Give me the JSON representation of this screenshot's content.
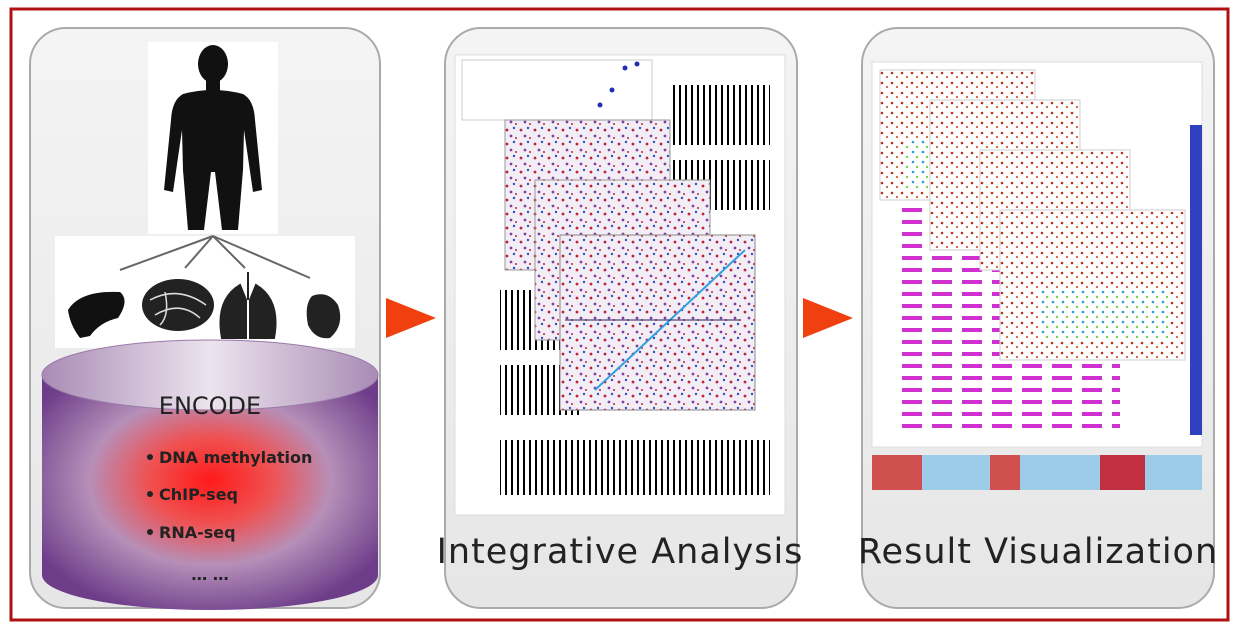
{
  "panels": [
    {
      "cylinder": {
        "title": "ENCODE",
        "items": [
          "DNA methylation",
          "ChIP-seq",
          "RNA-seq",
          "… …"
        ]
      }
    },
    {
      "caption": "Integrative Analysis"
    },
    {
      "caption": "Result Visualization"
    }
  ]
}
